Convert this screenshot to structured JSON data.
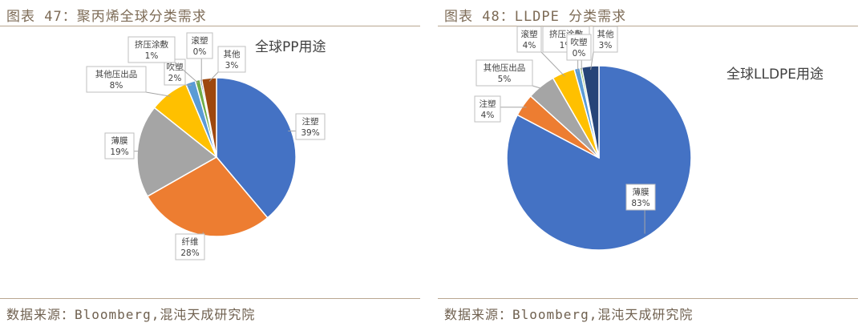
{
  "figures": [
    {
      "caption": "图表 47：聚丙烯全球分类需求",
      "source": "数据来源：Bloomberg,混沌天成研究院"
    },
    {
      "caption": "图表 48：LLDPE 分类需求",
      "source": "数据来源：Bloomberg,混沌天成研究院"
    }
  ],
  "chart_data": [
    {
      "type": "pie",
      "title": "全球PP用途",
      "start_angle_deg": 0,
      "direction": "clockwise",
      "slices": [
        {
          "label": "注塑",
          "value": 39,
          "display": "39%",
          "color": "#4472C4"
        },
        {
          "label": "纤维",
          "value": 28,
          "display": "28%",
          "color": "#ED7D31"
        },
        {
          "label": "薄膜",
          "value": 19,
          "display": "19%",
          "color": "#A5A5A5"
        },
        {
          "label": "其他压出品",
          "value": 8,
          "display": "8%",
          "color": "#FFC000"
        },
        {
          "label": "吹塑",
          "value": 2,
          "display": "2%",
          "color": "#5B9BD5"
        },
        {
          "label": "挤压涂敷",
          "value": 1,
          "display": "1%",
          "color": "#70AD47"
        },
        {
          "label": "滚塑",
          "value": 0,
          "display": "0%",
          "color": "#264478"
        },
        {
          "label": "其他",
          "value": 3,
          "display": "3%",
          "color": "#9E480E"
        }
      ]
    },
    {
      "type": "pie",
      "title": "全球LLDPE用途",
      "start_angle_deg": 0,
      "direction": "clockwise",
      "slices": [
        {
          "label": "薄膜",
          "value": 83,
          "display": "83%",
          "color": "#4472C4"
        },
        {
          "label": "注塑",
          "value": 4,
          "display": "4%",
          "color": "#ED7D31"
        },
        {
          "label": "其他压出品",
          "value": 5,
          "display": "5%",
          "color": "#A5A5A5"
        },
        {
          "label": "滚塑",
          "value": 4,
          "display": "4%",
          "color": "#FFC000"
        },
        {
          "label": "挤压涂敷",
          "value": 1,
          "display": "1%",
          "color": "#5B9BD5"
        },
        {
          "label": "吹塑",
          "value": 0,
          "display": "0%",
          "color": "#70AD47"
        },
        {
          "label": "其他",
          "value": 3,
          "display": "3%",
          "color": "#264478"
        }
      ]
    }
  ]
}
